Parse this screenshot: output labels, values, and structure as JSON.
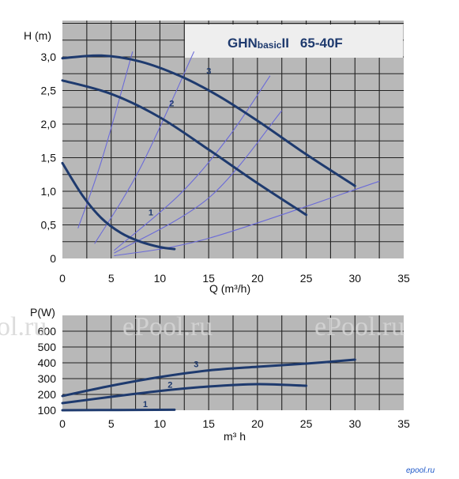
{
  "chart_data": [
    {
      "type": "line",
      "title_parts": [
        "GHN",
        "basic",
        "II",
        "65-40F"
      ],
      "xlabel": "Q (m³/h)",
      "ylabel": "H (m)",
      "xlim": [
        0,
        35
      ],
      "ylim": [
        0,
        3.0
      ],
      "x_ticks": [
        "0",
        "5",
        "10",
        "15",
        "20",
        "25",
        "30",
        "35"
      ],
      "y_ticks": [
        "0",
        "0,5",
        "1,0",
        "1,5",
        "2,0",
        "2,5",
        "3,0"
      ],
      "series": [
        {
          "name": "1",
          "x": [
            0,
            2,
            4,
            6,
            8,
            10,
            11.5
          ],
          "y": [
            1.42,
            0.95,
            0.6,
            0.38,
            0.25,
            0.17,
            0.14
          ]
        },
        {
          "name": "2",
          "x": [
            0,
            5,
            10,
            15,
            20,
            25
          ],
          "y": [
            2.65,
            2.45,
            2.1,
            1.62,
            1.12,
            0.65
          ]
        },
        {
          "name": "3",
          "x": [
            0,
            4,
            8,
            12,
            16,
            20,
            25,
            30
          ],
          "y": [
            2.98,
            3.02,
            2.93,
            2.72,
            2.42,
            2.05,
            1.55,
            1.08
          ]
        }
      ],
      "system_curves": [
        {
          "x": [
            1.6,
            4,
            7.2
          ],
          "y": [
            0.45,
            1.45,
            3.08
          ]
        },
        {
          "x": [
            3.3,
            8,
            13.5
          ],
          "y": [
            0.22,
            1.35,
            3.08
          ]
        },
        {
          "x": [
            5.3,
            12,
            17,
            21.3
          ],
          "y": [
            0.12,
            0.95,
            1.8,
            2.72
          ]
        },
        {
          "x": [
            5.3,
            15,
            22.5
          ],
          "y": [
            0.08,
            0.9,
            2.2
          ]
        },
        {
          "x": [
            5.3,
            15,
            32.5
          ],
          "y": [
            0.04,
            0.3,
            1.15
          ]
        }
      ],
      "grid": true
    },
    {
      "type": "line",
      "ylabel": "P(W)",
      "xlabel": "m³ h",
      "xlim": [
        0,
        35
      ],
      "ylim": [
        100,
        600
      ],
      "x_ticks": [
        "0",
        "5",
        "10",
        "15",
        "20",
        "25",
        "30",
        "35"
      ],
      "y_ticks": [
        "100",
        "200",
        "300",
        "400",
        "500",
        "600"
      ],
      "series": [
        {
          "name": "1",
          "x": [
            0,
            11.5
          ],
          "y": [
            100,
            103
          ]
        },
        {
          "name": "2",
          "x": [
            0,
            5,
            10,
            15,
            20,
            25
          ],
          "y": [
            145,
            185,
            222,
            250,
            265,
            255
          ]
        },
        {
          "name": "3",
          "x": [
            0,
            5,
            10,
            15,
            20,
            25,
            30
          ],
          "y": [
            190,
            255,
            310,
            352,
            375,
            395,
            420
          ]
        }
      ],
      "grid": true
    }
  ],
  "watermark": {
    "text": "ePool.ru",
    "text_left": "ol.ru"
  },
  "brand": "epool.ru"
}
